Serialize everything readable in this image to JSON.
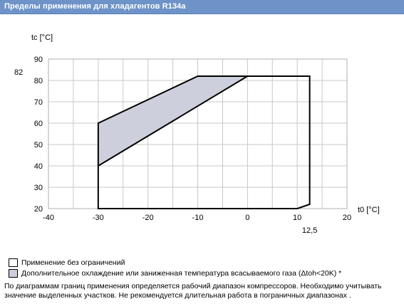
{
  "window": {
    "title": "Пределы применения для хладагентов R134a"
  },
  "chart_data": {
    "type": "area",
    "title": "",
    "xlabel": "t0 [°C]",
    "ylabel": "tc [°C]",
    "xlim": [
      -40,
      20
    ],
    "ylim": [
      20,
      90
    ],
    "x_ticks": [
      "-40",
      "-30",
      "-20",
      "-10",
      "0",
      "10",
      "20"
    ],
    "y_ticks": [
      "20",
      "30",
      "40",
      "50",
      "60",
      "70",
      "80",
      "90"
    ],
    "grid": true,
    "annotations": [
      {
        "text": "82",
        "axis": "y",
        "value": 82
      },
      {
        "text": "12,5",
        "axis": "x",
        "value": 12.5
      }
    ],
    "series": [
      {
        "name": "Применение без ограничений",
        "points": [
          [
            -30,
            20
          ],
          [
            -30,
            60
          ],
          [
            -10,
            82
          ],
          [
            12.5,
            82
          ],
          [
            12.5,
            22
          ],
          [
            10,
            20
          ]
        ],
        "color": "#000000"
      },
      {
        "name": "Дополнительное охлаждение или заниженная температура всасываемого газа (Δtoh<20K) *",
        "points": [
          [
            -30,
            40
          ],
          [
            -30,
            60
          ],
          [
            -10,
            82
          ],
          [
            0,
            82
          ]
        ],
        "color": "#cdd0dc"
      }
    ]
  },
  "legend": {
    "items": [
      {
        "label": "Применение без ограничений",
        "color": "#ffffff"
      },
      {
        "label": "Дополнительное охлаждение или заниженная температура всасываемого газа (Δtoh<20K) *",
        "color": "#cdd0dc"
      }
    ]
  },
  "note": {
    "text": "По диаграммам границ применения определяется рабочий диапазон компрессоров. Необходимо учитывать значение выделенных участков. Не рекомендуется длительная работа в пограничных диапазонах ."
  }
}
